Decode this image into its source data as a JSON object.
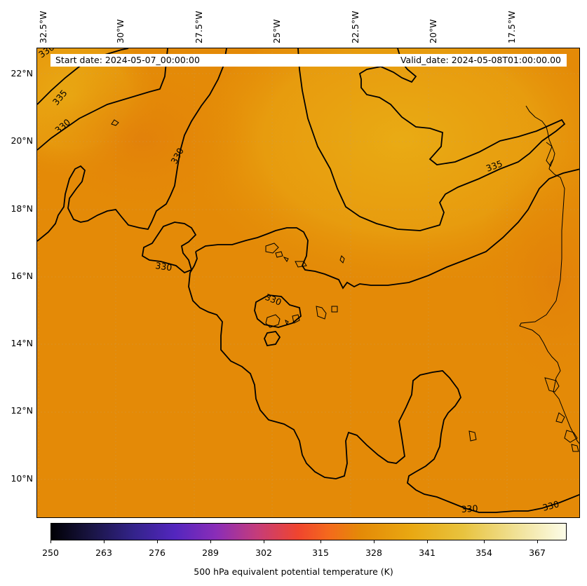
{
  "map": {
    "longitude_labels": [
      "32.5°W",
      "30°W",
      "27.5°W",
      "25°W",
      "22.5°W",
      "20°W",
      "17.5°W"
    ],
    "latitude_labels": [
      "22°N",
      "20°N",
      "18°N",
      "16°N",
      "14°N",
      "12°N",
      "10°N"
    ],
    "start_date": "Start date: 2024-05-07_00:00:00",
    "valid_date": "Valid_date: 2024-05-08T01:00:00.00",
    "contour_labels": [
      "330",
      "335",
      "330",
      "330",
      "330",
      "330",
      "335",
      "330",
      "330"
    ],
    "field_colors": {
      "base": "#e48a07",
      "warm": "#e9a812",
      "cool": "#e3840a",
      "contour": "#000000"
    }
  },
  "colorbar": {
    "title": "500 hPa equivalent potential temperature (K)",
    "range": [
      250,
      376
    ],
    "tick_labels": [
      "250",
      "263",
      "276",
      "289",
      "302",
      "315",
      "328",
      "341",
      "354",
      "367"
    ]
  }
}
